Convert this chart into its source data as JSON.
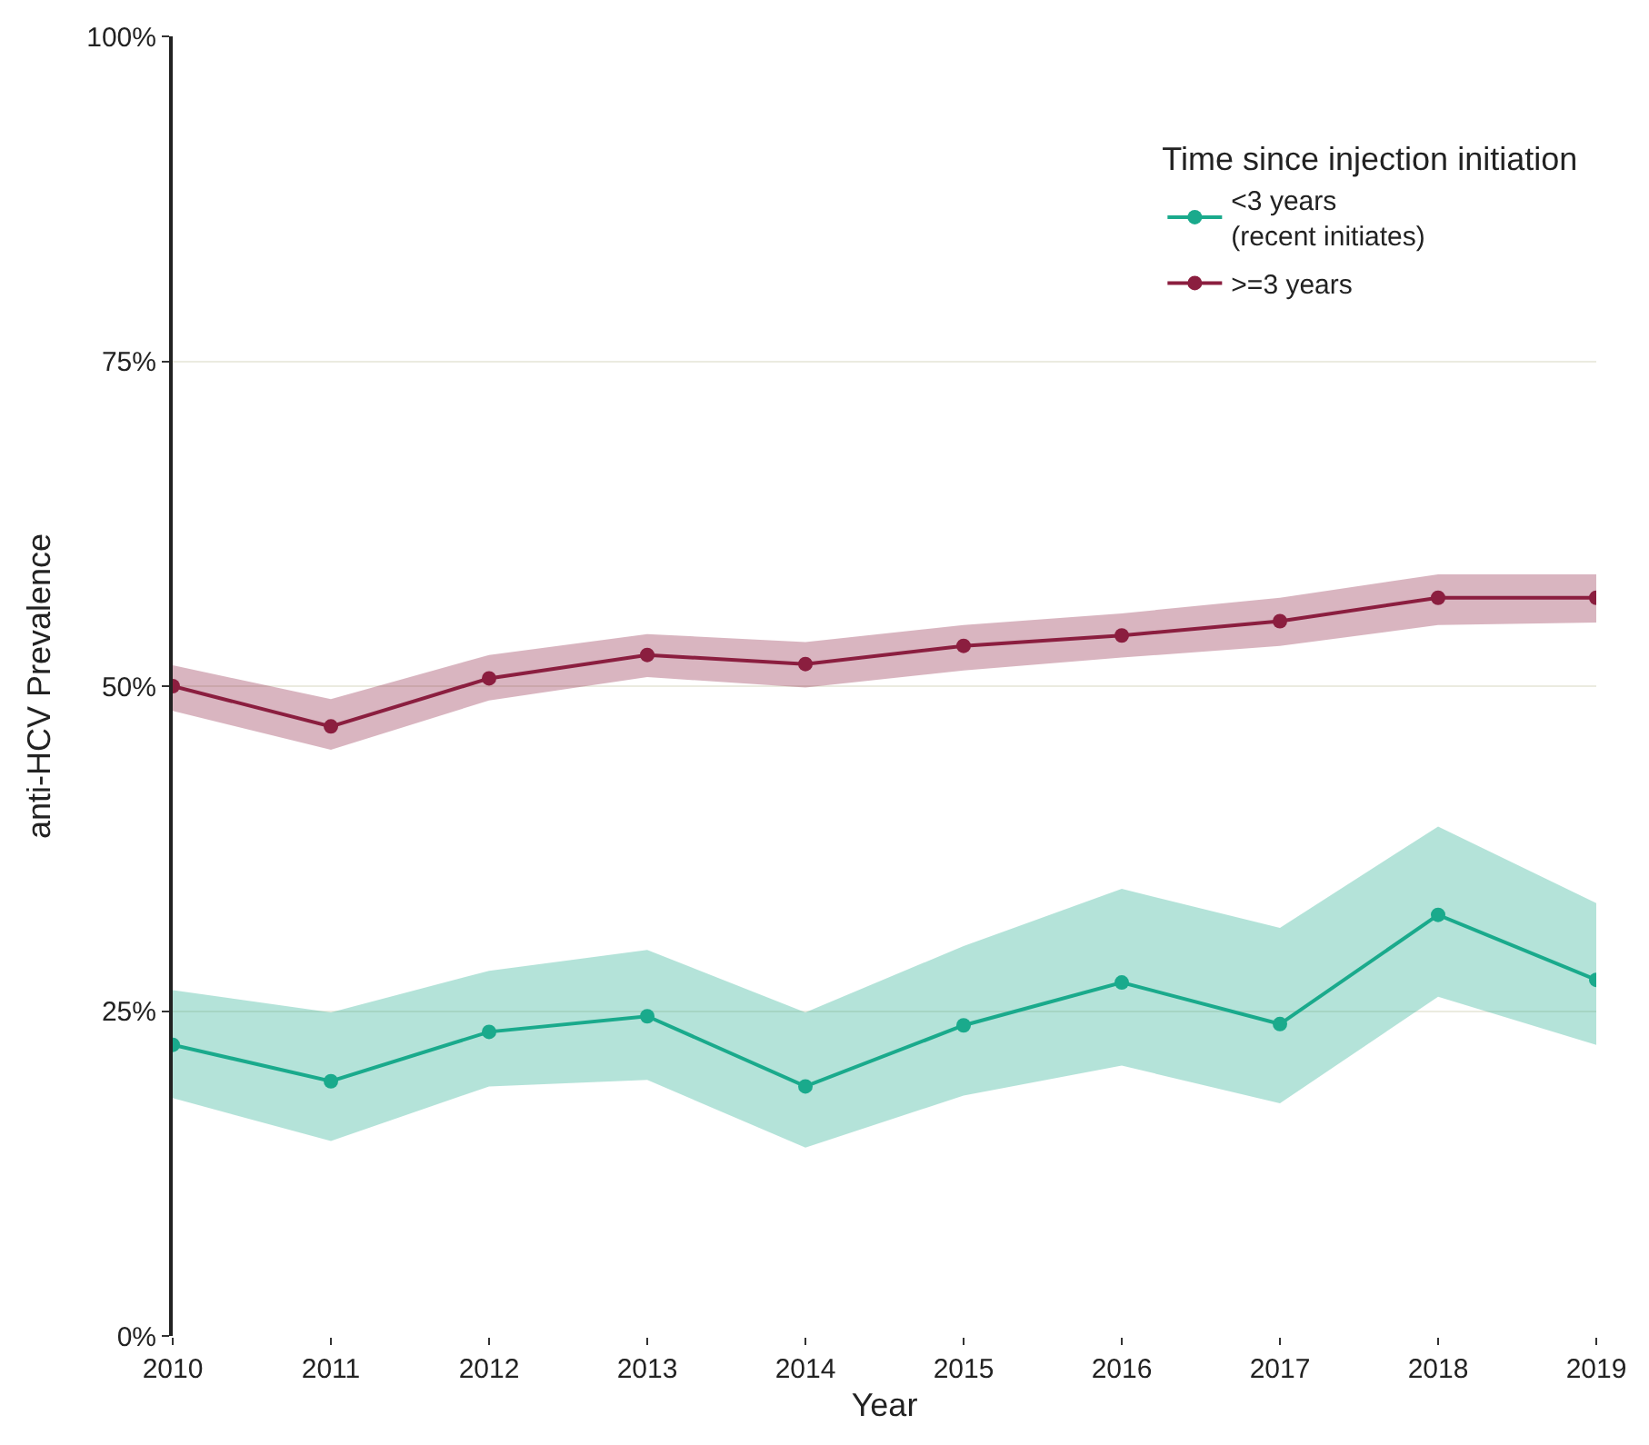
{
  "chart_data": {
    "type": "line",
    "xlabel": "Year",
    "ylabel": "anti-HCV Prevalence",
    "legend_title": "Time since injection initiation",
    "x": [
      2010,
      2011,
      2012,
      2013,
      2014,
      2015,
      2016,
      2017,
      2018,
      2019
    ],
    "series": [
      {
        "name": "<3 years\n(recent initiates)",
        "color": "#1aaa8c",
        "values": [
          22.4,
          19.6,
          23.4,
          24.6,
          19.2,
          23.9,
          27.2,
          24.0,
          32.4,
          27.4
        ],
        "lower": [
          18.3,
          15.0,
          19.2,
          19.7,
          14.5,
          18.5,
          20.8,
          17.9,
          26.1,
          22.4
        ],
        "upper": [
          26.6,
          24.9,
          28.1,
          29.7,
          24.9,
          30.0,
          34.4,
          31.4,
          39.2,
          33.3
        ]
      },
      {
        "name": ">=3 years",
        "color": "#8b1e3f",
        "values": [
          50.0,
          46.9,
          50.6,
          52.4,
          51.7,
          53.1,
          53.9,
          55.0,
          56.8,
          56.8
        ],
        "lower": [
          48.1,
          45.1,
          48.9,
          50.7,
          49.9,
          51.2,
          52.2,
          53.1,
          54.7,
          54.9
        ],
        "upper": [
          51.6,
          49.0,
          52.4,
          54.0,
          53.4,
          54.7,
          55.6,
          56.8,
          58.6,
          58.6
        ]
      }
    ],
    "xlim": [
      2010,
      2019
    ],
    "xticks": [
      2010,
      2011,
      2012,
      2013,
      2014,
      2015,
      2016,
      2017,
      2018,
      2019
    ],
    "ylim": [
      0,
      100
    ],
    "yticks": [
      {
        "value": 0,
        "label": "0%"
      },
      {
        "value": 25,
        "label": "25%"
      },
      {
        "value": 50,
        "label": "50%"
      },
      {
        "value": 75,
        "label": "75%"
      },
      {
        "value": 100,
        "label": "100%"
      }
    ],
    "grid": "y",
    "legend": "top right",
    "marker": "circle",
    "line_style": "solid"
  }
}
